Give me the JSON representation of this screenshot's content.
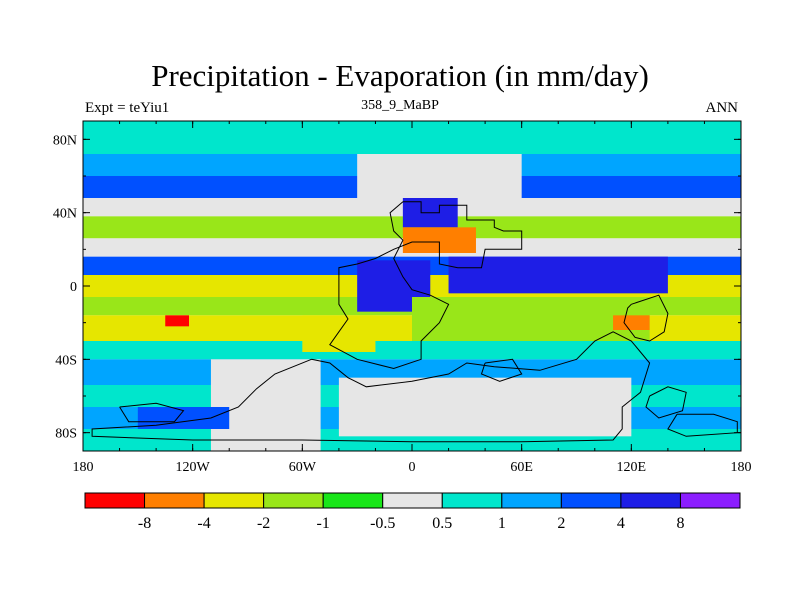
{
  "chart_data": {
    "type": "heatmap",
    "title": "Precipitation - Evaporation (in mm/day)",
    "subtitle_left": "Expt = teYiu1",
    "subtitle_center": "358_9_MaBP",
    "subtitle_right": "ANN",
    "xlim": [
      -180,
      180
    ],
    "ylim": [
      -90,
      90
    ],
    "x_ticks": [
      -180,
      -120,
      -60,
      0,
      60,
      120,
      180
    ],
    "x_tick_labels": [
      "180",
      "120W",
      "60W",
      "0",
      "60E",
      "120E",
      "180"
    ],
    "y_ticks": [
      80,
      40,
      0,
      -40,
      -80
    ],
    "y_tick_labels": [
      "80N",
      "40N",
      "0",
      "40S",
      "80S"
    ],
    "colorbar": {
      "colors": [
        "#ff0000",
        "#ff7f00",
        "#e6e600",
        "#99e619",
        "#19e619",
        "#e6e6e6",
        "#00e6cc",
        "#00a5ff",
        "#0050ff",
        "#1e1ee6",
        "#8c1eff"
      ],
      "boundary_labels": [
        "-8",
        "-4",
        "-2",
        "-1",
        "-0.5",
        "0.5",
        "1",
        "2",
        "4",
        "8"
      ]
    },
    "zonal_bands": [
      {
        "lat": [
          72,
          90
        ],
        "level": 6
      },
      {
        "lat": [
          60,
          72
        ],
        "level": 7
      },
      {
        "lat": [
          48,
          60
        ],
        "level": 8
      },
      {
        "lat": [
          38,
          48
        ],
        "level": 5
      },
      {
        "lat": [
          26,
          38
        ],
        "level": 3
      },
      {
        "lat": [
          16,
          26
        ],
        "level": 5
      },
      {
        "lat": [
          6,
          16
        ],
        "level": 8
      },
      {
        "lat": [
          -6,
          6
        ],
        "level": 2
      },
      {
        "lat": [
          -16,
          -6
        ],
        "level": 3
      },
      {
        "lat": [
          -30,
          -16
        ],
        "level": 2
      },
      {
        "lat": [
          -40,
          -30
        ],
        "level": 6
      },
      {
        "lat": [
          -54,
          -40
        ],
        "level": 7
      },
      {
        "lat": [
          -66,
          -54
        ],
        "level": 6
      },
      {
        "lat": [
          -78,
          -66
        ],
        "level": 7
      },
      {
        "lat": [
          -90,
          -78
        ],
        "level": 6
      }
    ],
    "regions": [
      {
        "lon": [
          -30,
          60
        ],
        "lat": [
          48,
          72
        ],
        "level": 5
      },
      {
        "lon": [
          -5,
          25
        ],
        "lat": [
          32,
          48
        ],
        "level": 9
      },
      {
        "lon": [
          -5,
          35
        ],
        "lat": [
          18,
          32
        ],
        "level": 1
      },
      {
        "lon": [
          -30,
          10
        ],
        "lat": [
          -14,
          14
        ],
        "level": 9
      },
      {
        "lon": [
          20,
          140
        ],
        "lat": [
          -4,
          16
        ],
        "level": 9
      },
      {
        "lon": [
          0,
          130
        ],
        "lat": [
          -30,
          -6
        ],
        "level": 3
      },
      {
        "lon": [
          -60,
          -20
        ],
        "lat": [
          -36,
          -16
        ],
        "level": 2
      },
      {
        "lon": [
          -110,
          -50
        ],
        "lat": [
          -90,
          -40
        ],
        "level": 5
      },
      {
        "lon": [
          -40,
          120
        ],
        "lat": [
          -82,
          -50
        ],
        "level": 5
      },
      {
        "lon": [
          110,
          130
        ],
        "lat": [
          -24,
          -16
        ],
        "level": 1
      },
      {
        "lon": [
          -135,
          -122
        ],
        "lat": [
          -22,
          -16
        ],
        "level": 0
      },
      {
        "lon": [
          -150,
          -100
        ],
        "lat": [
          -78,
          -66
        ],
        "level": 8
      }
    ],
    "coastlines": [
      [
        [
          -5,
          46
        ],
        [
          5,
          46
        ],
        [
          5,
          40
        ],
        [
          15,
          40
        ],
        [
          15,
          44
        ],
        [
          30,
          44
        ],
        [
          30,
          36
        ],
        [
          45,
          36
        ],
        [
          45,
          32
        ],
        [
          50,
          30
        ],
        [
          60,
          30
        ],
        [
          60,
          20
        ],
        [
          40,
          20
        ],
        [
          38,
          10
        ],
        [
          25,
          10
        ],
        [
          15,
          12
        ],
        [
          15,
          24
        ],
        [
          0,
          24
        ],
        [
          -10,
          20
        ],
        [
          -20,
          15
        ],
        [
          -30,
          12
        ],
        [
          -40,
          10
        ],
        [
          -40,
          -10
        ],
        [
          -35,
          -18
        ],
        [
          -40,
          -25
        ],
        [
          -45,
          -32
        ],
        [
          -30,
          -40
        ],
        [
          -10,
          -45
        ],
        [
          5,
          -40
        ],
        [
          5,
          -30
        ],
        [
          15,
          -20
        ],
        [
          20,
          -10
        ],
        [
          10,
          -5
        ],
        [
          0,
          -2
        ],
        [
          -5,
          5
        ],
        [
          -10,
          15
        ],
        [
          -5,
          25
        ],
        [
          -10,
          30
        ],
        [
          -12,
          40
        ],
        [
          -5,
          46
        ]
      ],
      [
        [
          -55,
          -40
        ],
        [
          -75,
          -48
        ],
        [
          -85,
          -56
        ],
        [
          -95,
          -66
        ],
        [
          -110,
          -72
        ],
        [
          -140,
          -76
        ],
        [
          -175,
          -78
        ],
        [
          -175,
          -82
        ],
        [
          -120,
          -84
        ],
        [
          -60,
          -84
        ],
        [
          0,
          -85
        ],
        [
          60,
          -85
        ],
        [
          110,
          -84
        ],
        [
          115,
          -78
        ],
        [
          115,
          -66
        ],
        [
          125,
          -58
        ],
        [
          130,
          -42
        ],
        [
          120,
          -30
        ],
        [
          110,
          -25
        ],
        [
          100,
          -30
        ],
        [
          90,
          -40
        ],
        [
          70,
          -46
        ],
        [
          45,
          -44
        ],
        [
          30,
          -42
        ],
        [
          20,
          -48
        ],
        [
          0,
          -52
        ],
        [
          -25,
          -55
        ],
        [
          -35,
          -50
        ],
        [
          -45,
          -42
        ],
        [
          -55,
          -40
        ]
      ],
      [
        [
          120,
          -10
        ],
        [
          135,
          -5
        ],
        [
          140,
          -15
        ],
        [
          138,
          -25
        ],
        [
          130,
          -30
        ],
        [
          122,
          -28
        ],
        [
          116,
          -20
        ],
        [
          118,
          -12
        ],
        [
          120,
          -10
        ]
      ],
      [
        [
          130,
          -60
        ],
        [
          140,
          -55
        ],
        [
          150,
          -58
        ],
        [
          148,
          -68
        ],
        [
          135,
          -72
        ],
        [
          128,
          -66
        ],
        [
          130,
          -60
        ]
      ],
      [
        [
          145,
          -70
        ],
        [
          165,
          -70
        ],
        [
          178,
          -74
        ],
        [
          178,
          -80
        ],
        [
          150,
          -82
        ],
        [
          140,
          -78
        ],
        [
          145,
          -70
        ]
      ],
      [
        [
          -160,
          -66
        ],
        [
          -140,
          -64
        ],
        [
          -125,
          -68
        ],
        [
          -130,
          -74
        ],
        [
          -155,
          -74
        ],
        [
          -160,
          -66
        ]
      ],
      [
        [
          40,
          -42
        ],
        [
          55,
          -40
        ],
        [
          60,
          -48
        ],
        [
          48,
          -52
        ],
        [
          38,
          -48
        ],
        [
          40,
          -42
        ]
      ]
    ]
  }
}
